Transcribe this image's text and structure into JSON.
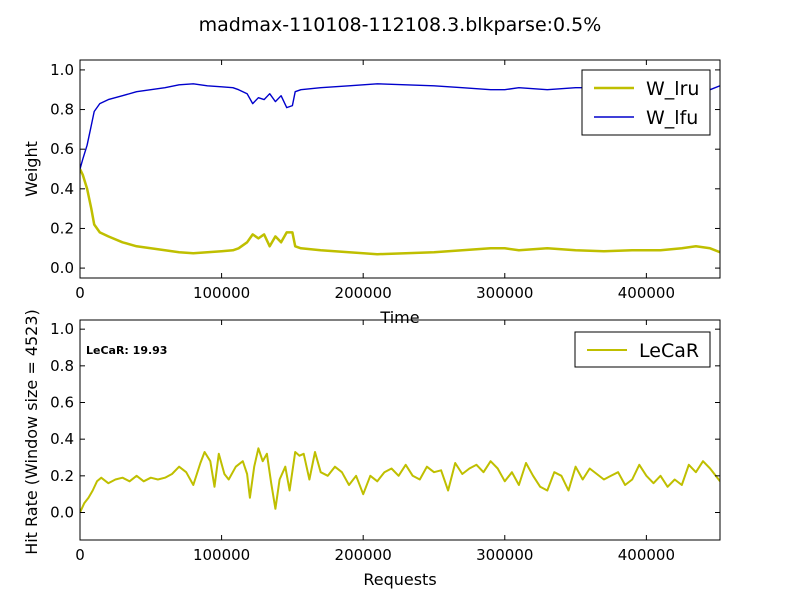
{
  "title": "madmax-110108-112108.3.blkparse:0.5%",
  "colors": {
    "w_lru": "#bfbf00",
    "w_lfu": "#0000cc",
    "lecar": "#bfbf00"
  },
  "chart_data": [
    {
      "type": "line",
      "xlabel": "Time",
      "ylabel": "Weight",
      "xlim": [
        0,
        452000
      ],
      "ylim": [
        -0.05,
        1.05
      ],
      "xticks": [
        "0",
        "100000",
        "200000",
        "300000",
        "400000"
      ],
      "yticks": [
        "0.0",
        "0.2",
        "0.4",
        "0.6",
        "0.8",
        "1.0"
      ],
      "legend_position": "top-right",
      "series": [
        {
          "name": "W_lru",
          "x": [
            0,
            2000,
            5000,
            8000,
            10000,
            14000,
            20000,
            30000,
            40000,
            50000,
            60000,
            70000,
            80000,
            90000,
            100000,
            108000,
            112000,
            118000,
            122000,
            126000,
            130000,
            134000,
            138000,
            142000,
            146000,
            150000,
            152000,
            156000,
            170000,
            190000,
            210000,
            230000,
            250000,
            270000,
            290000,
            300000,
            310000,
            330000,
            350000,
            370000,
            390000,
            410000,
            425000,
            435000,
            445000,
            452000
          ],
          "y": [
            0.5,
            0.47,
            0.4,
            0.3,
            0.22,
            0.18,
            0.16,
            0.13,
            0.11,
            0.1,
            0.09,
            0.08,
            0.075,
            0.08,
            0.085,
            0.09,
            0.1,
            0.13,
            0.17,
            0.15,
            0.17,
            0.11,
            0.16,
            0.13,
            0.18,
            0.18,
            0.11,
            0.1,
            0.09,
            0.08,
            0.07,
            0.075,
            0.08,
            0.09,
            0.1,
            0.1,
            0.09,
            0.1,
            0.09,
            0.085,
            0.09,
            0.09,
            0.1,
            0.11,
            0.1,
            0.08
          ]
        },
        {
          "name": "W_lfu",
          "x": [
            0,
            2000,
            5000,
            8000,
            10000,
            14000,
            20000,
            30000,
            40000,
            50000,
            60000,
            70000,
            80000,
            90000,
            100000,
            108000,
            112000,
            118000,
            122000,
            126000,
            130000,
            134000,
            138000,
            142000,
            146000,
            150000,
            152000,
            156000,
            170000,
            190000,
            210000,
            230000,
            250000,
            270000,
            290000,
            300000,
            310000,
            330000,
            350000,
            370000,
            390000,
            410000,
            425000,
            435000,
            445000,
            452000
          ],
          "y": [
            0.5,
            0.55,
            0.62,
            0.72,
            0.79,
            0.83,
            0.85,
            0.87,
            0.89,
            0.9,
            0.91,
            0.925,
            0.93,
            0.92,
            0.915,
            0.91,
            0.9,
            0.88,
            0.83,
            0.86,
            0.85,
            0.88,
            0.84,
            0.87,
            0.81,
            0.82,
            0.89,
            0.9,
            0.91,
            0.92,
            0.93,
            0.925,
            0.92,
            0.91,
            0.9,
            0.9,
            0.91,
            0.9,
            0.91,
            0.91,
            0.91,
            0.91,
            0.9,
            0.9,
            0.9,
            0.92
          ]
        }
      ]
    },
    {
      "type": "line",
      "xlabel": "Requests",
      "ylabel": "Hit Rate (Window size = 4523)",
      "xlim": [
        0,
        452000
      ],
      "ylim": [
        -0.15,
        1.05
      ],
      "xticks": [
        "0",
        "100000",
        "200000",
        "300000",
        "400000"
      ],
      "yticks": [
        "0.0",
        "0.2",
        "0.4",
        "0.6",
        "0.8",
        "1.0"
      ],
      "legend_position": "top-right",
      "annotation": "LeCaR:  19.93",
      "series": [
        {
          "name": "LeCaR",
          "x": [
            0,
            3000,
            6000,
            9000,
            12000,
            15000,
            20000,
            25000,
            30000,
            35000,
            40000,
            45000,
            50000,
            55000,
            60000,
            65000,
            70000,
            75000,
            80000,
            85000,
            88000,
            92000,
            95000,
            98000,
            102000,
            105000,
            110000,
            115000,
            118000,
            120000,
            123000,
            126000,
            129000,
            132000,
            135000,
            138000,
            141000,
            145000,
            148000,
            152000,
            155000,
            158000,
            162000,
            166000,
            170000,
            175000,
            180000,
            185000,
            190000,
            195000,
            200000,
            205000,
            210000,
            215000,
            220000,
            225000,
            230000,
            235000,
            240000,
            245000,
            250000,
            255000,
            260000,
            265000,
            270000,
            275000,
            280000,
            285000,
            290000,
            295000,
            300000,
            305000,
            310000,
            315000,
            320000,
            325000,
            330000,
            335000,
            340000,
            345000,
            350000,
            355000,
            360000,
            365000,
            370000,
            375000,
            380000,
            385000,
            390000,
            395000,
            400000,
            405000,
            410000,
            415000,
            420000,
            425000,
            430000,
            435000,
            440000,
            445000,
            452000
          ],
          "y": [
            0.0,
            0.05,
            0.08,
            0.12,
            0.17,
            0.19,
            0.16,
            0.18,
            0.19,
            0.17,
            0.2,
            0.17,
            0.19,
            0.18,
            0.19,
            0.21,
            0.25,
            0.22,
            0.15,
            0.27,
            0.33,
            0.28,
            0.14,
            0.32,
            0.21,
            0.18,
            0.25,
            0.28,
            0.21,
            0.08,
            0.25,
            0.35,
            0.28,
            0.32,
            0.16,
            0.02,
            0.18,
            0.25,
            0.12,
            0.33,
            0.31,
            0.32,
            0.18,
            0.33,
            0.22,
            0.2,
            0.25,
            0.22,
            0.15,
            0.2,
            0.1,
            0.2,
            0.17,
            0.22,
            0.24,
            0.2,
            0.26,
            0.2,
            0.18,
            0.25,
            0.22,
            0.23,
            0.12,
            0.27,
            0.21,
            0.24,
            0.26,
            0.22,
            0.28,
            0.24,
            0.17,
            0.22,
            0.15,
            0.27,
            0.2,
            0.14,
            0.12,
            0.22,
            0.2,
            0.12,
            0.25,
            0.18,
            0.24,
            0.21,
            0.18,
            0.2,
            0.22,
            0.15,
            0.18,
            0.26,
            0.2,
            0.16,
            0.2,
            0.14,
            0.18,
            0.15,
            0.26,
            0.22,
            0.28,
            0.24,
            0.17
          ]
        }
      ]
    }
  ]
}
